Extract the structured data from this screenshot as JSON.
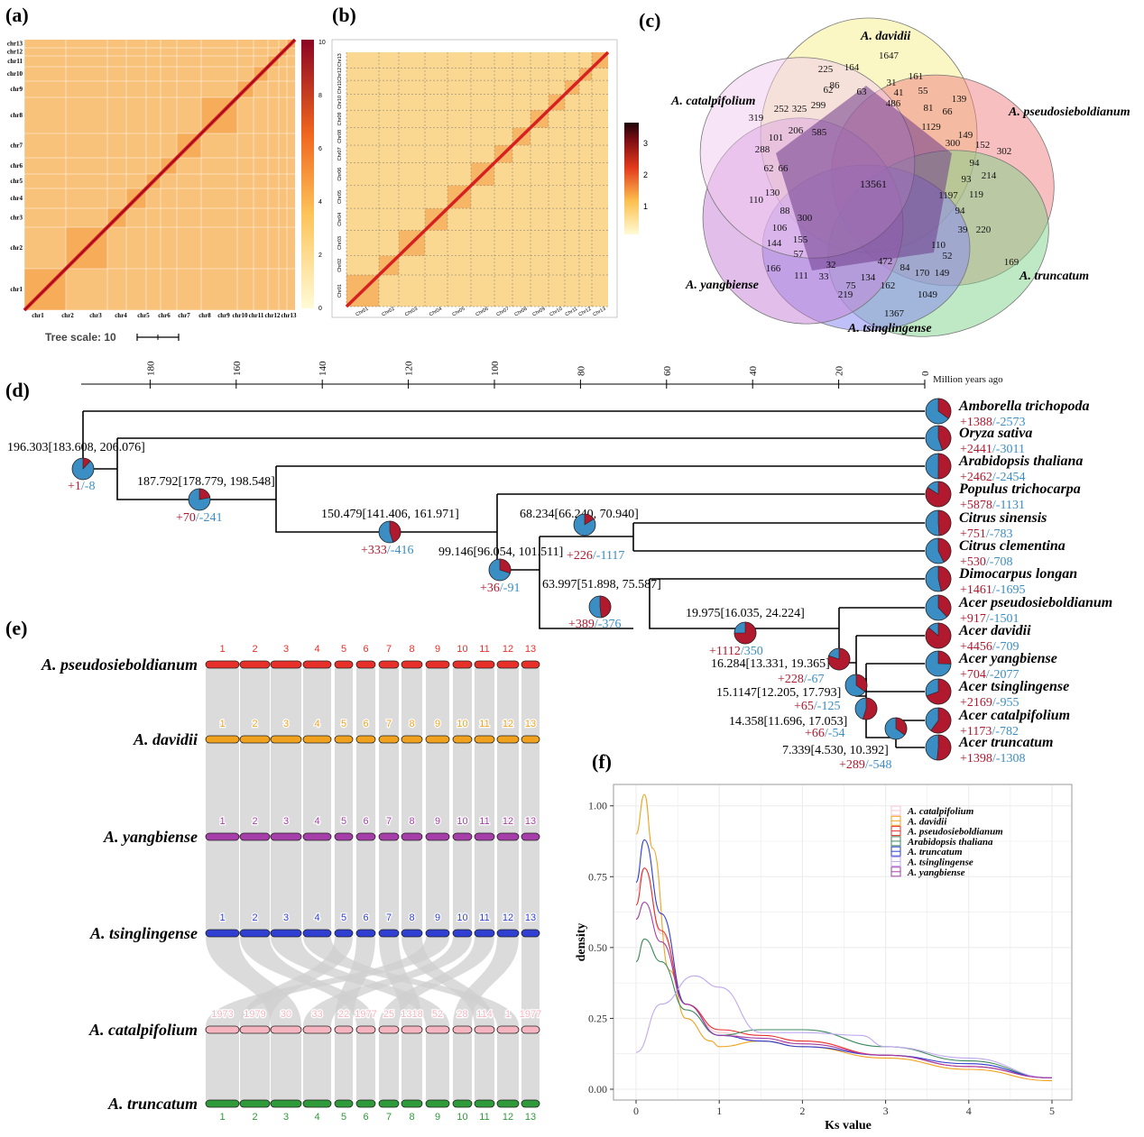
{
  "panels": {
    "a": "(a)",
    "b": "(b)",
    "c": "(c)",
    "d": "(d)",
    "e": "(e)",
    "f": "(f)"
  },
  "colors": {
    "gain": "#b0192e",
    "loss": "#3b8ec4"
  },
  "panel_a": {
    "chrom_labels": [
      "chr1",
      "chr2",
      "chr3",
      "chr4",
      "chr5",
      "chr6",
      "chr7",
      "chr8",
      "chr9",
      "chr10",
      "chr11",
      "chr12",
      "chr13"
    ],
    "colorbar_ticks": [
      "10",
      "8",
      "6",
      "4",
      "2",
      "0"
    ],
    "tree_scale": "Tree scale: 10"
  },
  "panel_b": {
    "chrom_labels": [
      "Chr01",
      "Chr02",
      "Chr03",
      "Chr04",
      "Chr05",
      "Chr06",
      "Chr07",
      "Chr08",
      "Chr09",
      "Chr10",
      "Chr11",
      "Chr12",
      "Chr13"
    ],
    "colorbar_ticks": [
      "3",
      "2",
      "1"
    ]
  },
  "panel_c": {
    "species": [
      "A. davidii",
      "A. pseudosieboldianum",
      "A. truncatum",
      "A. tsinglingense",
      "A. yangbiense",
      "A. catalpifolium"
    ],
    "core": "13561",
    "counts": [
      "1647",
      "225",
      "164",
      "161",
      "86",
      "31",
      "62",
      "63",
      "41",
      "55",
      "486",
      "81",
      "139",
      "66",
      "319",
      "252",
      "325",
      "299",
      "585",
      "1129",
      "300",
      "149",
      "152",
      "302",
      "101",
      "206",
      "94",
      "214",
      "288",
      "93",
      "62",
      "66",
      "1197",
      "119",
      "110",
      "130",
      "94",
      "39",
      "220",
      "88",
      "300",
      "169",
      "106",
      "155",
      "110",
      "52",
      "144",
      "57",
      "472",
      "166",
      "111",
      "33",
      "32",
      "134",
      "84",
      "170",
      "149",
      "75",
      "162",
      "1049",
      "219",
      "1367"
    ]
  },
  "panel_d": {
    "axis_title": "Million years ago",
    "axis_ticks": [
      "180",
      "160",
      "140",
      "120",
      "100",
      "80",
      "60",
      "40",
      "20",
      "0"
    ],
    "species": [
      {
        "name": "Amborella trichopoda",
        "gain": "+1388",
        "loss": "/-2573"
      },
      {
        "name": "Oryza sativa",
        "gain": "+2441",
        "loss": "/-3011"
      },
      {
        "name": "Arabidopsis thaliana",
        "gain": "+2462",
        "loss": "/-2454"
      },
      {
        "name": "Populus trichocarpa",
        "gain": "+5878",
        "loss": "/-1131"
      },
      {
        "name": "Citrus sinensis",
        "gain": "+751",
        "loss": "/-783"
      },
      {
        "name": "Citrus clementina",
        "gain": "+530",
        "loss": "/-708"
      },
      {
        "name": "Dimocarpus longan",
        "gain": "+1461",
        "loss": "/-1695"
      },
      {
        "name": "Acer pseudosieboldianum",
        "gain": "+917",
        "loss": "/-1501"
      },
      {
        "name": "Acer davidii",
        "gain": "+4456",
        "loss": "/-709"
      },
      {
        "name": "Acer yangbiense",
        "gain": "+704",
        "loss": "/-2077"
      },
      {
        "name": "Acer tsinglingense",
        "gain": "+2169",
        "loss": "/-955"
      },
      {
        "name": "Acer catalpifolium",
        "gain": "+1173",
        "loss": "/-782"
      },
      {
        "name": "Acer truncatum",
        "gain": "+1398",
        "loss": "/-1308"
      }
    ],
    "nodes": [
      {
        "age": "196.303[183.608, 206.076]",
        "gain": "+1",
        "loss": "/-8"
      },
      {
        "age": "187.792[178.779, 198.548]",
        "gain": "+70",
        "loss": "/-241"
      },
      {
        "age": "150.479[141.406, 161.971]",
        "gain": "+333",
        "loss": "/-416"
      },
      {
        "age": "99.146[96.054, 101.511]",
        "gain": "+36",
        "loss": "/-91"
      },
      {
        "age": "68.234[66.240, 70.940]",
        "gain": "+226",
        "loss": "/-1117"
      },
      {
        "age": "63.997[51.898, 75.587]",
        "gain": "+389",
        "loss": "/-376"
      },
      {
        "age": "19.975[16.035, 24.224]",
        "gain": "+1112",
        "loss": "/350"
      },
      {
        "age": "16.284[13.331, 19.365]",
        "gain": "+228",
        "loss": "/-67"
      },
      {
        "age": "15.1147[12.205, 17.793]",
        "gain": "+65",
        "loss": "/-125"
      },
      {
        "age": "14.358[11.696, 17.053]",
        "gain": "+66",
        "loss": "/-54"
      },
      {
        "age": "7.339[4.530, 10.392]",
        "gain": "+289",
        "loss": "/-548"
      }
    ]
  },
  "panel_e": {
    "genomes": [
      {
        "name": "A. pseudosieboldianum",
        "color": "#e8302a",
        "labels": [
          "1",
          "2",
          "3",
          "4",
          "5",
          "6",
          "7",
          "8",
          "9",
          "10",
          "11",
          "12",
          "13"
        ]
      },
      {
        "name": "A. davidii",
        "color": "#f0a21e",
        "labels": [
          "1",
          "2",
          "3",
          "4",
          "5",
          "6",
          "7",
          "8",
          "9",
          "10",
          "11",
          "12",
          "13"
        ]
      },
      {
        "name": "A. yangbiense",
        "color": "#a53ea8",
        "labels": [
          "1",
          "2",
          "3",
          "4",
          "5",
          "6",
          "7",
          "8",
          "9",
          "10",
          "11",
          "12",
          "13"
        ]
      },
      {
        "name": "A. tsinglingense",
        "color": "#2f3fd1",
        "labels": [
          "1",
          "2",
          "3",
          "4",
          "5",
          "6",
          "7",
          "8",
          "9",
          "10",
          "11",
          "12",
          "13"
        ]
      },
      {
        "name": "A. catalpifolium",
        "color": "#f5b5c0",
        "labels": [
          "1973",
          "1979",
          "30",
          "33",
          "22",
          "1977",
          "25",
          "1318",
          "52",
          "28",
          "114",
          "1",
          "1977"
        ]
      },
      {
        "name": "A. truncatum",
        "color": "#2f9a3a",
        "labels": [
          "1",
          "2",
          "3",
          "4",
          "5",
          "6",
          "7",
          "8",
          "9",
          "10",
          "11",
          "12",
          "13"
        ]
      }
    ]
  },
  "panel_f": {
    "chart_data": {
      "type": "line",
      "xlabel": "Ks value",
      "ylabel": "density",
      "xlim": [
        0,
        5
      ],
      "ylim": [
        0,
        1.05
      ],
      "x_ticks": [
        "0",
        "1",
        "2",
        "3",
        "4",
        "5"
      ],
      "y_ticks": [
        "0.00",
        "0.25",
        "0.50",
        "0.75",
        "1.00"
      ],
      "series": [
        {
          "name": "A. catalpifolium",
          "color": "#f7c6d2",
          "x": [
            0,
            0.1,
            0.3,
            0.6,
            1.0,
            1.5,
            2,
            3,
            4,
            5
          ],
          "y": [
            0.7,
            0.78,
            0.55,
            0.3,
            0.2,
            0.17,
            0.16,
            0.12,
            0.09,
            0.04
          ]
        },
        {
          "name": "A. davidii",
          "color": "#f0a21e",
          "x": [
            0,
            0.1,
            0.2,
            0.4,
            0.6,
            0.9,
            1.0,
            1.5,
            2,
            3,
            4,
            5
          ],
          "y": [
            0.9,
            1.04,
            0.85,
            0.42,
            0.25,
            0.17,
            0.15,
            0.17,
            0.15,
            0.11,
            0.07,
            0.03
          ]
        },
        {
          "name": "A. pseudosieboldianum",
          "color": "#e8302a",
          "x": [
            0,
            0.1,
            0.3,
            0.6,
            1.0,
            1.5,
            2,
            3,
            4,
            5
          ],
          "y": [
            0.65,
            0.78,
            0.56,
            0.3,
            0.21,
            0.19,
            0.17,
            0.12,
            0.08,
            0.04
          ]
        },
        {
          "name": "Arabidopsis thaliana",
          "color": "#3d8a5c",
          "x": [
            0,
            0.1,
            0.3,
            0.6,
            1.0,
            1.5,
            2,
            3,
            4,
            5
          ],
          "y": [
            0.45,
            0.53,
            0.45,
            0.28,
            0.19,
            0.21,
            0.21,
            0.15,
            0.1,
            0.04
          ]
        },
        {
          "name": "A. truncatum",
          "color": "#2f3fd1",
          "x": [
            0,
            0.1,
            0.3,
            0.6,
            1.0,
            1.5,
            2,
            3,
            4,
            5
          ],
          "y": [
            0.73,
            0.88,
            0.62,
            0.3,
            0.19,
            0.17,
            0.15,
            0.12,
            0.09,
            0.04
          ]
        },
        {
          "name": "A. tsinglingense",
          "color": "#c0a8f0",
          "x": [
            0,
            0.3,
            0.7,
            1.0,
            1.5,
            2,
            2.7,
            3,
            4,
            5
          ],
          "y": [
            0.13,
            0.3,
            0.4,
            0.36,
            0.2,
            0.2,
            0.19,
            0.15,
            0.11,
            0.04
          ]
        },
        {
          "name": "A. yangbiense",
          "color": "#a53ea8",
          "x": [
            0,
            0.1,
            0.3,
            0.6,
            1.0,
            1.5,
            2,
            3,
            4,
            5
          ],
          "y": [
            0.6,
            0.66,
            0.52,
            0.3,
            0.19,
            0.18,
            0.16,
            0.12,
            0.08,
            0.04
          ]
        }
      ]
    }
  }
}
